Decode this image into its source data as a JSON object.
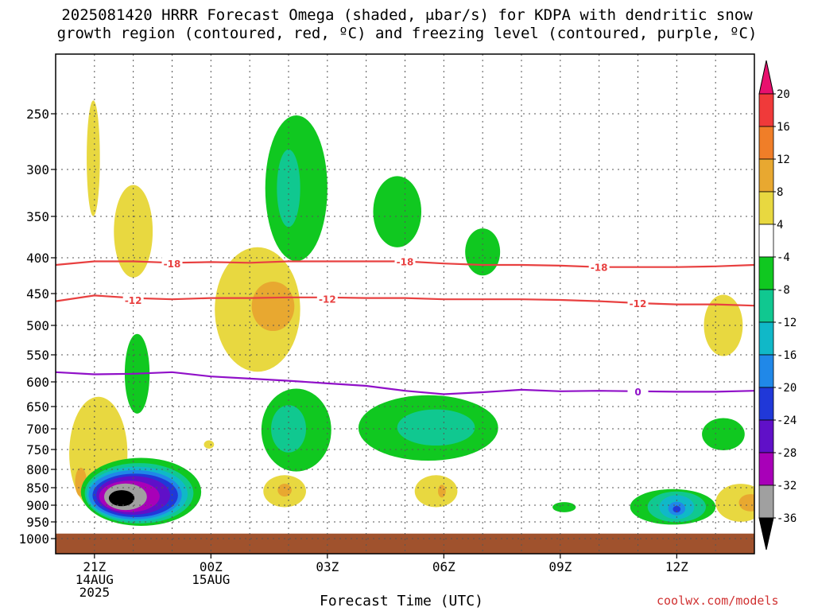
{
  "chart_data": {
    "type": "heatmap",
    "title_line1": "2025081420 HRRR Forecast Omega (shaded, μbar/s) for KDPA with dendritic snow",
    "title_line2": "growth region (contoured, red, ºC) and freezing level (contoured, purple, ºC)",
    "xlabel": "Forecast Time (UTC)",
    "ylabel": "",
    "credit": "coolwx.com/models",
    "y_ticks": [
      250,
      300,
      350,
      400,
      450,
      500,
      550,
      600,
      650,
      700,
      750,
      800,
      850,
      900,
      950,
      1000
    ],
    "y_range_hPa": [
      200,
      1000
    ],
    "x_range_hours": [
      -1.0,
      17.0
    ],
    "x_ticks": [
      {
        "hour": 0,
        "label": "21Z",
        "sub1": "14AUG",
        "sub2": "2025"
      },
      {
        "hour": 3,
        "label": "00Z",
        "sub1": "15AUG",
        "sub2": ""
      },
      {
        "hour": 6,
        "label": "03Z",
        "sub1": "",
        "sub2": ""
      },
      {
        "hour": 9,
        "label": "06Z",
        "sub1": "",
        "sub2": ""
      },
      {
        "hour": 12,
        "label": "09Z",
        "sub1": "",
        "sub2": ""
      },
      {
        "hour": 15,
        "label": "12Z",
        "sub1": "",
        "sub2": ""
      }
    ],
    "grid": true,
    "colorbar": {
      "labels": [
        "20",
        "16",
        "12",
        "8",
        "4",
        "-4",
        "-8",
        "-12",
        "-16",
        "-20",
        "-24",
        "-28",
        "-32",
        "-36"
      ],
      "colors": [
        "#e8106e",
        "#f03a3a",
        "#f07e28",
        "#e8a830",
        "#e8d840",
        "#ffffff",
        "#10c820",
        "#10c890",
        "#10b8c8",
        "#2088e8",
        "#2038d8",
        "#6010c8",
        "#a800b8",
        "#a0a0a0",
        "#000000"
      ]
    },
    "contours": [
      {
        "name": "-18",
        "color": "#e84040",
        "points": [
          [
            -1,
            410
          ],
          [
            0,
            405
          ],
          [
            1,
            405
          ],
          [
            2,
            407
          ],
          [
            3,
            406
          ],
          [
            4,
            407
          ],
          [
            5,
            405
          ],
          [
            6,
            405
          ],
          [
            7,
            405
          ],
          [
            8,
            405
          ],
          [
            9,
            408
          ],
          [
            10,
            410
          ],
          [
            11,
            410
          ],
          [
            12,
            411
          ],
          [
            13,
            413
          ],
          [
            14,
            413
          ],
          [
            15,
            413
          ],
          [
            16,
            412
          ],
          [
            17,
            410
          ]
        ],
        "labels": [
          [
            2,
            408
          ],
          [
            8,
            405
          ],
          [
            13,
            413
          ]
        ]
      },
      {
        "name": "-12",
        "color": "#e84040",
        "points": [
          [
            -1,
            462
          ],
          [
            0,
            453
          ],
          [
            1,
            457
          ],
          [
            2,
            459
          ],
          [
            3,
            457
          ],
          [
            4,
            457
          ],
          [
            5,
            456
          ],
          [
            6,
            456
          ],
          [
            7,
            457
          ],
          [
            8,
            457
          ],
          [
            9,
            459
          ],
          [
            10,
            459
          ],
          [
            11,
            459
          ],
          [
            12,
            460
          ],
          [
            13,
            462
          ],
          [
            14,
            465
          ],
          [
            15,
            467
          ],
          [
            16,
            467
          ],
          [
            17,
            469
          ]
        ],
        "labels": [
          [
            1,
            460
          ],
          [
            6,
            458
          ],
          [
            14,
            465
          ]
        ]
      },
      {
        "name": "0",
        "color": "#9010c8",
        "points": [
          [
            -1,
            582
          ],
          [
            0,
            586
          ],
          [
            1,
            585
          ],
          [
            2,
            582
          ],
          [
            3,
            590
          ],
          [
            4,
            594
          ],
          [
            5,
            598
          ],
          [
            6,
            603
          ],
          [
            7,
            608
          ],
          [
            8,
            618
          ],
          [
            9,
            625
          ],
          [
            10,
            621
          ],
          [
            11,
            616
          ],
          [
            12,
            619
          ],
          [
            13,
            618
          ],
          [
            14,
            619
          ],
          [
            15,
            620
          ],
          [
            16,
            620
          ],
          [
            17,
            618
          ]
        ],
        "labels": [
          [
            14,
            619
          ]
        ]
      }
    ],
    "regions": [
      {
        "value": 5,
        "color": "#e8d840",
        "hour": -0.03,
        "hPa": 290,
        "rx_h": 0.17,
        "ry_hPa": 55
      },
      {
        "value": 5,
        "color": "#e8d840",
        "hour": 1.0,
        "hPa": 368,
        "rx_h": 0.5,
        "ry_hPa": 55
      },
      {
        "value": 5,
        "color": "#e8d840",
        "hour": 0.1,
        "hPa": 760,
        "rx_h": 0.75,
        "ry_hPa": 140
      },
      {
        "value": 10,
        "color": "#e8a830",
        "hour": -0.35,
        "hPa": 835,
        "rx_h": 0.15,
        "ry_hPa": 40
      },
      {
        "value": 5,
        "color": "#e8d840",
        "hour": 4.2,
        "hPa": 475,
        "rx_h": 1.1,
        "ry_hPa": 95
      },
      {
        "value": 10,
        "color": "#e8a830",
        "hour": 4.6,
        "hPa": 470,
        "rx_h": 0.55,
        "ry_hPa": 38
      },
      {
        "value": 5,
        "color": "#e8d840",
        "hour": 2.95,
        "hPa": 738,
        "rx_h": 0.13,
        "ry_hPa": 10
      },
      {
        "value": 5,
        "color": "#e8d840",
        "hour": 4.9,
        "hPa": 860,
        "rx_h": 0.55,
        "ry_hPa": 45
      },
      {
        "value": 10,
        "color": "#e8a830",
        "hour": 4.9,
        "hPa": 857,
        "rx_h": 0.18,
        "ry_hPa": 18
      },
      {
        "value": 5,
        "color": "#e8d840",
        "hour": 8.8,
        "hPa": 860,
        "rx_h": 0.55,
        "ry_hPa": 45
      },
      {
        "value": 10,
        "color": "#e8a830",
        "hour": 8.95,
        "hPa": 860,
        "rx_h": 0.1,
        "ry_hPa": 18
      },
      {
        "value": 5,
        "color": "#e8d840",
        "hour": 16.2,
        "hPa": 500,
        "rx_h": 0.5,
        "ry_hPa": 50
      },
      {
        "value": 5,
        "color": "#e8d840",
        "hour": 16.65,
        "hPa": 893,
        "rx_h": 0.65,
        "ry_hPa": 55
      },
      {
        "value": 10,
        "color": "#e8a830",
        "hour": 16.9,
        "hPa": 893,
        "rx_h": 0.3,
        "ry_hPa": 25
      },
      {
        "value": -6,
        "color": "#10c820",
        "hour": 5.2,
        "hPa": 320,
        "rx_h": 0.8,
        "ry_hPa": 75
      },
      {
        "value": -10,
        "color": "#10c890",
        "hour": 5.0,
        "hPa": 320,
        "rx_h": 0.3,
        "ry_hPa": 40
      },
      {
        "value": -6,
        "color": "#10c820",
        "hour": 7.8,
        "hPa": 345,
        "rx_h": 0.62,
        "ry_hPa": 40
      },
      {
        "value": -6,
        "color": "#10c820",
        "hour": 10.0,
        "hPa": 393,
        "rx_h": 0.45,
        "ry_hPa": 30
      },
      {
        "value": -6,
        "color": "#10c820",
        "hour": 1.1,
        "hPa": 585,
        "rx_h": 0.32,
        "ry_hPa": 75
      },
      {
        "value": -6,
        "color": "#10c820",
        "hour": 5.2,
        "hPa": 703,
        "rx_h": 0.9,
        "ry_hPa": 95
      },
      {
        "value": -10,
        "color": "#10c890",
        "hour": 5.0,
        "hPa": 700,
        "rx_h": 0.45,
        "ry_hPa": 55
      },
      {
        "value": -6,
        "color": "#10c820",
        "hour": 8.6,
        "hPa": 698,
        "rx_h": 1.8,
        "ry_hPa": 75
      },
      {
        "value": -10,
        "color": "#10c890",
        "hour": 8.8,
        "hPa": 697,
        "rx_h": 1.0,
        "ry_hPa": 42
      },
      {
        "value": -6,
        "color": "#10c820",
        "hour": 16.2,
        "hPa": 713,
        "rx_h": 0.55,
        "ry_hPa": 38
      },
      {
        "value": -6,
        "color": "#10c820",
        "hour": 12.1,
        "hPa": 906,
        "rx_h": 0.3,
        "ry_hPa": 15
      },
      {
        "value": -6,
        "color": "#10c820",
        "hour": 14.9,
        "hPa": 905,
        "rx_h": 1.1,
        "ry_hPa": 52
      },
      {
        "value": -10,
        "color": "#10c890",
        "hour": 15.0,
        "hPa": 905,
        "rx_h": 0.75,
        "ry_hPa": 45
      },
      {
        "value": -14,
        "color": "#10b8c8",
        "hour": 15.0,
        "hPa": 906,
        "rx_h": 0.45,
        "ry_hPa": 35
      },
      {
        "value": -18,
        "color": "#2088e8",
        "hour": 15.0,
        "hPa": 910,
        "rx_h": 0.22,
        "ry_hPa": 20
      },
      {
        "value": -22,
        "color": "#2038d8",
        "hour": 15.0,
        "hPa": 912,
        "rx_h": 0.1,
        "ry_hPa": 10
      },
      {
        "value": -6,
        "color": "#10c820",
        "hour": 1.2,
        "hPa": 862,
        "rx_h": 1.55,
        "ry_hPa": 95
      },
      {
        "value": -10,
        "color": "#10c890",
        "hour": 1.15,
        "hPa": 866,
        "rx_h": 1.4,
        "ry_hPa": 85
      },
      {
        "value": -14,
        "color": "#10b8c8",
        "hour": 1.1,
        "hPa": 868,
        "rx_h": 1.3,
        "ry_hPa": 77
      },
      {
        "value": -18,
        "color": "#2088e8",
        "hour": 1.05,
        "hPa": 870,
        "rx_h": 1.2,
        "ry_hPa": 70
      },
      {
        "value": -22,
        "color": "#2038d8",
        "hour": 1.05,
        "hPa": 872,
        "rx_h": 1.1,
        "ry_hPa": 62
      },
      {
        "value": -26,
        "color": "#6010c8",
        "hour": 1.0,
        "hPa": 872,
        "rx_h": 0.95,
        "ry_hPa": 55
      },
      {
        "value": -30,
        "color": "#a800b8",
        "hour": 0.9,
        "hPa": 875,
        "rx_h": 0.78,
        "ry_hPa": 45
      },
      {
        "value": -34,
        "color": "#a0a0a0",
        "hour": 0.8,
        "hPa": 876,
        "rx_h": 0.55,
        "ry_hPa": 38
      },
      {
        "value": -38,
        "color": "#000000",
        "hour": 0.7,
        "hPa": 880,
        "rx_h": 0.33,
        "ry_hPa": 23
      }
    ],
    "ground": {
      "from_hPa": 985,
      "to_hPa": 1005,
      "color": "#a0522d"
    }
  }
}
